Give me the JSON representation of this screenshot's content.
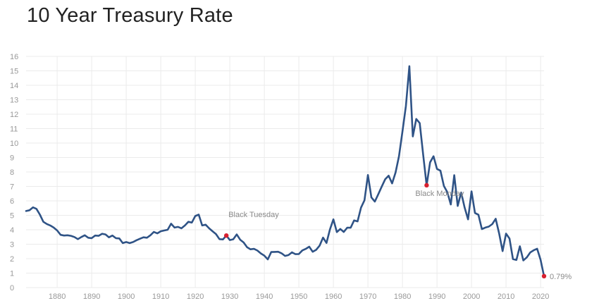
{
  "title": "10 Year Treasury Rate",
  "colors": {
    "line": "#2f5386",
    "marker": "#d8202f",
    "grid": "#ebebeb",
    "text": "#999999"
  },
  "chart_data": {
    "type": "line",
    "title": "10 Year Treasury Rate",
    "xlabel": "",
    "ylabel": "",
    "xlim": [
      1871,
      2021
    ],
    "ylim": [
      0,
      16
    ],
    "grid": true,
    "x_ticks": [
      "1880",
      "1890",
      "1900",
      "1910",
      "1920",
      "1930",
      "1940",
      "1950",
      "1960",
      "1970",
      "1980",
      "1990",
      "2000",
      "2010",
      "2020"
    ],
    "y_ticks": [
      "0",
      "1",
      "2",
      "3",
      "4",
      "5",
      "6",
      "7",
      "8",
      "9",
      "10",
      "11",
      "12",
      "13",
      "14",
      "15",
      "16"
    ],
    "series": [
      {
        "x": [
          1871,
          1872,
          1873,
          1874,
          1875,
          1876,
          1877,
          1878,
          1879,
          1880,
          1881,
          1882,
          1883,
          1884,
          1885,
          1886,
          1887,
          1888,
          1889,
          1890,
          1891,
          1892,
          1893,
          1894,
          1895,
          1896,
          1897,
          1898,
          1899,
          1900,
          1901,
          1902,
          1903,
          1904,
          1905,
          1906,
          1907,
          1908,
          1909,
          1910,
          1911,
          1912,
          1913,
          1914,
          1915,
          1916,
          1917,
          1918,
          1919,
          1920,
          1921,
          1922,
          1923,
          1924,
          1925,
          1926,
          1927,
          1928,
          1929,
          1930,
          1931,
          1932,
          1933,
          1934,
          1935,
          1936,
          1937,
          1938,
          1939,
          1940,
          1941,
          1942,
          1943,
          1944,
          1945,
          1946,
          1947,
          1948,
          1949,
          1950,
          1951,
          1952,
          1953,
          1954,
          1955,
          1956,
          1957,
          1958,
          1959,
          1960,
          1961,
          1962,
          1963,
          1964,
          1965,
          1966,
          1967,
          1968,
          1969,
          1970,
          1971,
          1972,
          1973,
          1974,
          1975,
          1976,
          1977,
          1978,
          1979,
          1980,
          1981,
          1982,
          1983,
          1984,
          1985,
          1986,
          1987,
          1988,
          1989,
          1990,
          1991,
          1992,
          1993,
          1994,
          1995,
          1996,
          1997,
          1998,
          1999,
          2000,
          2001,
          2002,
          2003,
          2004,
          2005,
          2006,
          2007,
          2008,
          2009,
          2010,
          2011,
          2012,
          2013,
          2014,
          2015,
          2016,
          2017,
          2018,
          2019,
          2020,
          2021
        ],
        "values": [
          5.3,
          5.35,
          5.55,
          5.45,
          5.05,
          4.55,
          4.4,
          4.3,
          4.15,
          3.95,
          3.65,
          3.6,
          3.62,
          3.58,
          3.5,
          3.35,
          3.5,
          3.62,
          3.45,
          3.42,
          3.6,
          3.58,
          3.72,
          3.68,
          3.48,
          3.6,
          3.42,
          3.4,
          3.08,
          3.15,
          3.08,
          3.15,
          3.28,
          3.38,
          3.48,
          3.45,
          3.62,
          3.85,
          3.75,
          3.9,
          3.95,
          4.0,
          4.42,
          4.15,
          4.2,
          4.1,
          4.3,
          4.55,
          4.5,
          4.95,
          5.05,
          4.3,
          4.35,
          4.1,
          3.9,
          3.7,
          3.35,
          3.33,
          3.6,
          3.29,
          3.34,
          3.68,
          3.31,
          3.12,
          2.79,
          2.65,
          2.68,
          2.56,
          2.36,
          2.21,
          1.95,
          2.46,
          2.47,
          2.48,
          2.37,
          2.19,
          2.25,
          2.44,
          2.31,
          2.32,
          2.57,
          2.68,
          2.83,
          2.48,
          2.61,
          2.9,
          3.46,
          3.09,
          4.02,
          4.72,
          3.84,
          4.06,
          3.85,
          4.14,
          4.14,
          4.65,
          4.58,
          5.53,
          6.04,
          7.79,
          6.24,
          5.95,
          6.46,
          6.99,
          7.5,
          7.74,
          7.21,
          7.96,
          9.1,
          10.8,
          12.57,
          15.32,
          10.46,
          11.67,
          11.38,
          9.19,
          7.08,
          8.67,
          9.09,
          8.21,
          8.09,
          7.03,
          6.6,
          5.75,
          7.78,
          5.65,
          6.58,
          5.54,
          4.72,
          6.66,
          5.16,
          5.04,
          4.05,
          4.15,
          4.22,
          4.39,
          4.76,
          3.74,
          2.52,
          3.73,
          3.39,
          1.97,
          1.91,
          2.86,
          1.88,
          2.09,
          2.43,
          2.58,
          2.69,
          1.92,
          0.79
        ]
      }
    ],
    "annotations": [
      {
        "label": "Black Tuesday",
        "x": 1929,
        "y": 3.6
      },
      {
        "label": "Black Monday",
        "x": 1987,
        "y": 7.08
      }
    ],
    "last_value": {
      "x": 2021,
      "y": 0.79,
      "label": "0.79%"
    }
  }
}
